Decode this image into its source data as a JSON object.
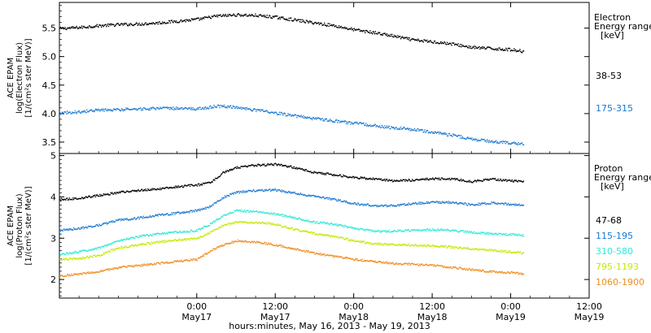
{
  "chart_data": [
    {
      "type": "scatter",
      "ylabel_lines": [
        "ACE EPAM",
        "log(Electron Flux)",
        "[1/(cm²s ster MeV)]"
      ],
      "legend_title_lines": [
        "Electron",
        "Energy ranges",
        "[keV]"
      ],
      "ylim": [
        3.3,
        5.95
      ],
      "yticks": [
        3.5,
        4.0,
        4.5,
        5.0,
        5.5
      ],
      "ytick_labels": [
        "3.5",
        "4.0",
        "4.5",
        "5.0",
        "5.5"
      ],
      "series": [
        {
          "name": "38-53",
          "color": "#000000",
          "points": [
            [
              -9,
              5.5
            ],
            [
              -6,
              5.52
            ],
            [
              -3,
              5.55
            ],
            [
              0,
              5.57
            ],
            [
              3,
              5.58
            ],
            [
              6,
              5.6
            ],
            [
              9,
              5.63
            ],
            [
              12,
              5.66
            ],
            [
              15,
              5.72
            ],
            [
              18,
              5.74
            ],
            [
              21,
              5.73
            ],
            [
              24,
              5.7
            ],
            [
              27,
              5.65
            ],
            [
              30,
              5.6
            ],
            [
              33,
              5.55
            ],
            [
              36,
              5.48
            ],
            [
              39,
              5.43
            ],
            [
              42,
              5.37
            ],
            [
              45,
              5.3
            ],
            [
              48,
              5.27
            ],
            [
              51,
              5.23
            ],
            [
              54,
              5.17
            ],
            [
              57,
              5.15
            ],
            [
              60,
              5.13
            ],
            [
              62,
              5.1
            ]
          ]
        },
        {
          "name": "175-315",
          "color": "#1a78d0",
          "points": [
            [
              -9,
              4.02
            ],
            [
              -6,
              4.04
            ],
            [
              -3,
              4.07
            ],
            [
              0,
              4.08
            ],
            [
              3,
              4.09
            ],
            [
              6,
              4.1
            ],
            [
              9,
              4.1
            ],
            [
              12,
              4.09
            ],
            [
              15,
              4.14
            ],
            [
              18,
              4.12
            ],
            [
              21,
              4.07
            ],
            [
              24,
              4.02
            ],
            [
              27,
              3.97
            ],
            [
              30,
              3.92
            ],
            [
              33,
              3.88
            ],
            [
              36,
              3.84
            ],
            [
              39,
              3.8
            ],
            [
              42,
              3.76
            ],
            [
              45,
              3.73
            ],
            [
              48,
              3.68
            ],
            [
              51,
              3.63
            ],
            [
              54,
              3.56
            ],
            [
              57,
              3.52
            ],
            [
              60,
              3.49
            ],
            [
              62,
              3.47
            ]
          ]
        }
      ]
    },
    {
      "type": "scatter",
      "ylabel_lines": [
        "ACE EPAM",
        "log(Proton Flux)",
        "[1/(cm²s ster MeV)]"
      ],
      "legend_title_lines": [
        "Proton",
        "Energy ranges",
        "[keV]"
      ],
      "ylim": [
        1.55,
        5.05
      ],
      "yticks": [
        2,
        3,
        4,
        5
      ],
      "ytick_labels": [
        "2",
        "3",
        "4",
        "5"
      ],
      "series": [
        {
          "name": "47-68",
          "color": "#000000",
          "points": [
            [
              -9,
              3.95
            ],
            [
              -6,
              3.98
            ],
            [
              -3,
              4.05
            ],
            [
              0,
              4.12
            ],
            [
              3,
              4.17
            ],
            [
              6,
              4.2
            ],
            [
              9,
              4.26
            ],
            [
              12,
              4.3
            ],
            [
              14,
              4.35
            ],
            [
              16,
              4.6
            ],
            [
              18,
              4.72
            ],
            [
              21,
              4.78
            ],
            [
              24,
              4.8
            ],
            [
              27,
              4.72
            ],
            [
              30,
              4.6
            ],
            [
              33,
              4.55
            ],
            [
              36,
              4.48
            ],
            [
              39,
              4.45
            ],
            [
              42,
              4.4
            ],
            [
              45,
              4.42
            ],
            [
              48,
              4.45
            ],
            [
              51,
              4.45
            ],
            [
              54,
              4.38
            ],
            [
              57,
              4.45
            ],
            [
              60,
              4.4
            ],
            [
              62,
              4.38
            ]
          ]
        },
        {
          "name": "115-195",
          "color": "#1a78d0",
          "points": [
            [
              -9,
              3.2
            ],
            [
              -6,
              3.25
            ],
            [
              -3,
              3.33
            ],
            [
              0,
              3.45
            ],
            [
              3,
              3.5
            ],
            [
              6,
              3.57
            ],
            [
              9,
              3.62
            ],
            [
              12,
              3.68
            ],
            [
              14,
              3.78
            ],
            [
              16,
              4.0
            ],
            [
              18,
              4.12
            ],
            [
              21,
              4.17
            ],
            [
              24,
              4.18
            ],
            [
              27,
              4.1
            ],
            [
              30,
              4.02
            ],
            [
              33,
              3.95
            ],
            [
              36,
              3.85
            ],
            [
              39,
              3.8
            ],
            [
              42,
              3.8
            ],
            [
              45,
              3.85
            ],
            [
              48,
              3.88
            ],
            [
              51,
              3.88
            ],
            [
              54,
              3.82
            ],
            [
              57,
              3.87
            ],
            [
              60,
              3.83
            ],
            [
              62,
              3.82
            ]
          ]
        },
        {
          "name": "310-580",
          "color": "#2ee8d6",
          "points": [
            [
              -9,
              2.62
            ],
            [
              -6,
              2.68
            ],
            [
              -3,
              2.78
            ],
            [
              0,
              2.95
            ],
            [
              3,
              3.05
            ],
            [
              6,
              3.12
            ],
            [
              9,
              3.16
            ],
            [
              12,
              3.2
            ],
            [
              14,
              3.35
            ],
            [
              16,
              3.55
            ],
            [
              18,
              3.68
            ],
            [
              21,
              3.65
            ],
            [
              24,
              3.6
            ],
            [
              27,
              3.5
            ],
            [
              30,
              3.4
            ],
            [
              33,
              3.35
            ],
            [
              36,
              3.25
            ],
            [
              39,
              3.18
            ],
            [
              42,
              3.18
            ],
            [
              45,
              3.2
            ],
            [
              48,
              3.22
            ],
            [
              51,
              3.2
            ],
            [
              54,
              3.15
            ],
            [
              57,
              3.12
            ],
            [
              60,
              3.1
            ],
            [
              62,
              3.08
            ]
          ]
        },
        {
          "name": "795-1193",
          "color": "#c4e800",
          "points": [
            [
              -9,
              2.5
            ],
            [
              -6,
              2.52
            ],
            [
              -3,
              2.6
            ],
            [
              0,
              2.78
            ],
            [
              3,
              2.85
            ],
            [
              6,
              2.92
            ],
            [
              9,
              2.97
            ],
            [
              12,
              3.0
            ],
            [
              14,
              3.15
            ],
            [
              16,
              3.32
            ],
            [
              18,
              3.4
            ],
            [
              21,
              3.4
            ],
            [
              24,
              3.35
            ],
            [
              27,
              3.22
            ],
            [
              30,
              3.12
            ],
            [
              33,
              3.05
            ],
            [
              36,
              2.95
            ],
            [
              39,
              2.88
            ],
            [
              42,
              2.85
            ],
            [
              45,
              2.85
            ],
            [
              48,
              2.82
            ],
            [
              51,
              2.8
            ],
            [
              54,
              2.75
            ],
            [
              57,
              2.72
            ],
            [
              60,
              2.68
            ],
            [
              62,
              2.65
            ]
          ]
        },
        {
          "name": "1060-1900",
          "color": "#f08c1e",
          "points": [
            [
              -9,
              2.1
            ],
            [
              -6,
              2.15
            ],
            [
              -3,
              2.2
            ],
            [
              0,
              2.3
            ],
            [
              3,
              2.35
            ],
            [
              6,
              2.4
            ],
            [
              9,
              2.45
            ],
            [
              12,
              2.5
            ],
            [
              14,
              2.7
            ],
            [
              16,
              2.85
            ],
            [
              18,
              2.95
            ],
            [
              21,
              2.92
            ],
            [
              24,
              2.85
            ],
            [
              27,
              2.75
            ],
            [
              30,
              2.65
            ],
            [
              33,
              2.57
            ],
            [
              36,
              2.5
            ],
            [
              39,
              2.45
            ],
            [
              42,
              2.4
            ],
            [
              45,
              2.38
            ],
            [
              48,
              2.35
            ],
            [
              51,
              2.3
            ],
            [
              54,
              2.25
            ],
            [
              57,
              2.2
            ],
            [
              60,
              2.18
            ],
            [
              62,
              2.15
            ]
          ]
        }
      ]
    }
  ],
  "x_axis": {
    "unit": "hours since May 16, 2013 12:00",
    "xlim": [
      -9,
      72
    ],
    "ticks": [
      {
        "x": 12,
        "time": "0:00",
        "date": "May17"
      },
      {
        "x": 24,
        "time": "12:00",
        "date": "May17"
      },
      {
        "x": 36,
        "time": "0:00",
        "date": "May18"
      },
      {
        "x": 48,
        "time": "12:00",
        "date": "May18"
      },
      {
        "x": 60,
        "time": "0:00",
        "date": "May19"
      },
      {
        "x": 72,
        "time": "12:00",
        "date": "May19"
      }
    ],
    "label": "hours:minutes, May 16, 2013 - May 19, 2013"
  }
}
